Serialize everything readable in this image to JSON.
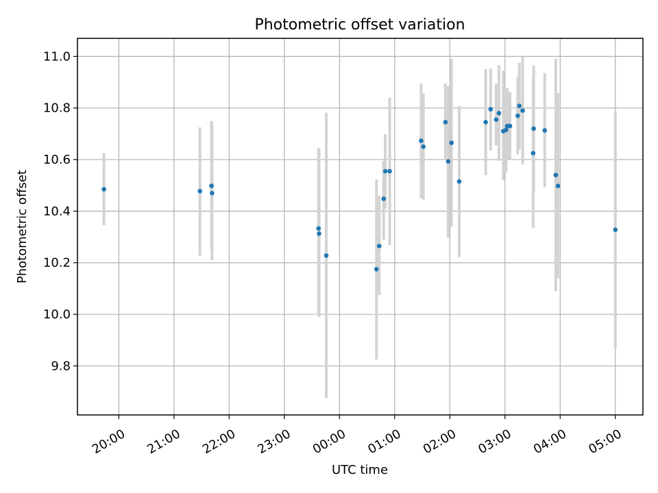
{
  "chart_data": {
    "type": "scatter",
    "title": "Photometric offset variation",
    "xlabel": "UTC time",
    "ylabel": "Photometric offset",
    "x_unit": "hours since 20:00 UTC",
    "xlim": [
      -0.75,
      9.5
    ],
    "ylim": [
      9.61,
      11.07
    ],
    "x_ticks": [
      {
        "value": 0,
        "label": "20:00"
      },
      {
        "value": 1,
        "label": "21:00"
      },
      {
        "value": 2,
        "label": "22:00"
      },
      {
        "value": 3,
        "label": "23:00"
      },
      {
        "value": 4,
        "label": "00:00"
      },
      {
        "value": 5,
        "label": "01:00"
      },
      {
        "value": 6,
        "label": "02:00"
      },
      {
        "value": 7,
        "label": "03:00"
      },
      {
        "value": 8,
        "label": "04:00"
      },
      {
        "value": 9,
        "label": "05:00"
      }
    ],
    "y_ticks": [
      {
        "value": 9.8,
        "label": "9.8"
      },
      {
        "value": 10.0,
        "label": "10.0"
      },
      {
        "value": 10.2,
        "label": "10.2"
      },
      {
        "value": 10.4,
        "label": "10.4"
      },
      {
        "value": 10.6,
        "label": "10.6"
      },
      {
        "value": 10.8,
        "label": "10.8"
      },
      {
        "value": 11.0,
        "label": "11.0"
      }
    ],
    "grid": true,
    "colors": {
      "point": "#1f77b4",
      "errorbar": "#d3d3d3"
    },
    "points": [
      {
        "x": -0.27,
        "y": 10.485,
        "lo": 10.345,
        "hi": 10.625
      },
      {
        "x": 1.47,
        "y": 10.478,
        "lo": 10.228,
        "hi": 10.725
      },
      {
        "x": 1.68,
        "y": 10.498,
        "lo": 10.25,
        "hi": 10.75
      },
      {
        "x": 1.69,
        "y": 10.47,
        "lo": 10.21,
        "hi": 10.73
      },
      {
        "x": 3.62,
        "y": 10.333,
        "lo": 10.0,
        "hi": 10.645
      },
      {
        "x": 3.63,
        "y": 10.313,
        "lo": 9.99,
        "hi": 10.64
      },
      {
        "x": 3.76,
        "y": 10.228,
        "lo": 9.675,
        "hi": 10.782
      },
      {
        "x": 4.67,
        "y": 10.175,
        "lo": 9.825,
        "hi": 10.523
      },
      {
        "x": 4.72,
        "y": 10.265,
        "lo": 10.075,
        "hi": 10.46
      },
      {
        "x": 4.8,
        "y": 10.448,
        "lo": 10.29,
        "hi": 10.595
      },
      {
        "x": 4.83,
        "y": 10.555,
        "lo": 10.41,
        "hi": 10.698
      },
      {
        "x": 4.91,
        "y": 10.555,
        "lo": 10.268,
        "hi": 10.84
      },
      {
        "x": 5.48,
        "y": 10.673,
        "lo": 10.45,
        "hi": 10.895
      },
      {
        "x": 5.52,
        "y": 10.65,
        "lo": 10.445,
        "hi": 10.855
      },
      {
        "x": 5.92,
        "y": 10.745,
        "lo": 10.598,
        "hi": 10.895
      },
      {
        "x": 5.97,
        "y": 10.593,
        "lo": 10.298,
        "hi": 10.885
      },
      {
        "x": 6.03,
        "y": 10.665,
        "lo": 10.34,
        "hi": 10.99
      },
      {
        "x": 6.17,
        "y": 10.515,
        "lo": 10.222,
        "hi": 10.808
      },
      {
        "x": 6.65,
        "y": 10.745,
        "lo": 10.54,
        "hi": 10.95
      },
      {
        "x": 6.74,
        "y": 10.795,
        "lo": 10.635,
        "hi": 10.953
      },
      {
        "x": 6.84,
        "y": 10.755,
        "lo": 10.655,
        "hi": 10.895
      },
      {
        "x": 6.89,
        "y": 10.78,
        "lo": 10.595,
        "hi": 10.965
      },
      {
        "x": 6.97,
        "y": 10.71,
        "lo": 10.52,
        "hi": 10.945
      },
      {
        "x": 7.02,
        "y": 10.715,
        "lo": 10.55,
        "hi": 10.88
      },
      {
        "x": 7.04,
        "y": 10.73,
        "lo": 10.6,
        "hi": 10.875
      },
      {
        "x": 7.09,
        "y": 10.73,
        "lo": 10.6,
        "hi": 10.862
      },
      {
        "x": 7.23,
        "y": 10.77,
        "lo": 10.62,
        "hi": 10.92
      },
      {
        "x": 7.26,
        "y": 10.808,
        "lo": 10.64,
        "hi": 10.975
      },
      {
        "x": 7.32,
        "y": 10.79,
        "lo": 10.582,
        "hi": 10.998
      },
      {
        "x": 7.52,
        "y": 10.72,
        "lo": 10.475,
        "hi": 10.965
      },
      {
        "x": 7.51,
        "y": 10.625,
        "lo": 10.335,
        "hi": 10.915
      },
      {
        "x": 7.72,
        "y": 10.713,
        "lo": 10.493,
        "hi": 10.935
      },
      {
        "x": 7.92,
        "y": 10.54,
        "lo": 10.09,
        "hi": 10.99
      },
      {
        "x": 7.96,
        "y": 10.498,
        "lo": 10.14,
        "hi": 10.858
      },
      {
        "x": 9.0,
        "y": 10.328,
        "lo": 9.868,
        "hi": 10.788
      }
    ]
  }
}
